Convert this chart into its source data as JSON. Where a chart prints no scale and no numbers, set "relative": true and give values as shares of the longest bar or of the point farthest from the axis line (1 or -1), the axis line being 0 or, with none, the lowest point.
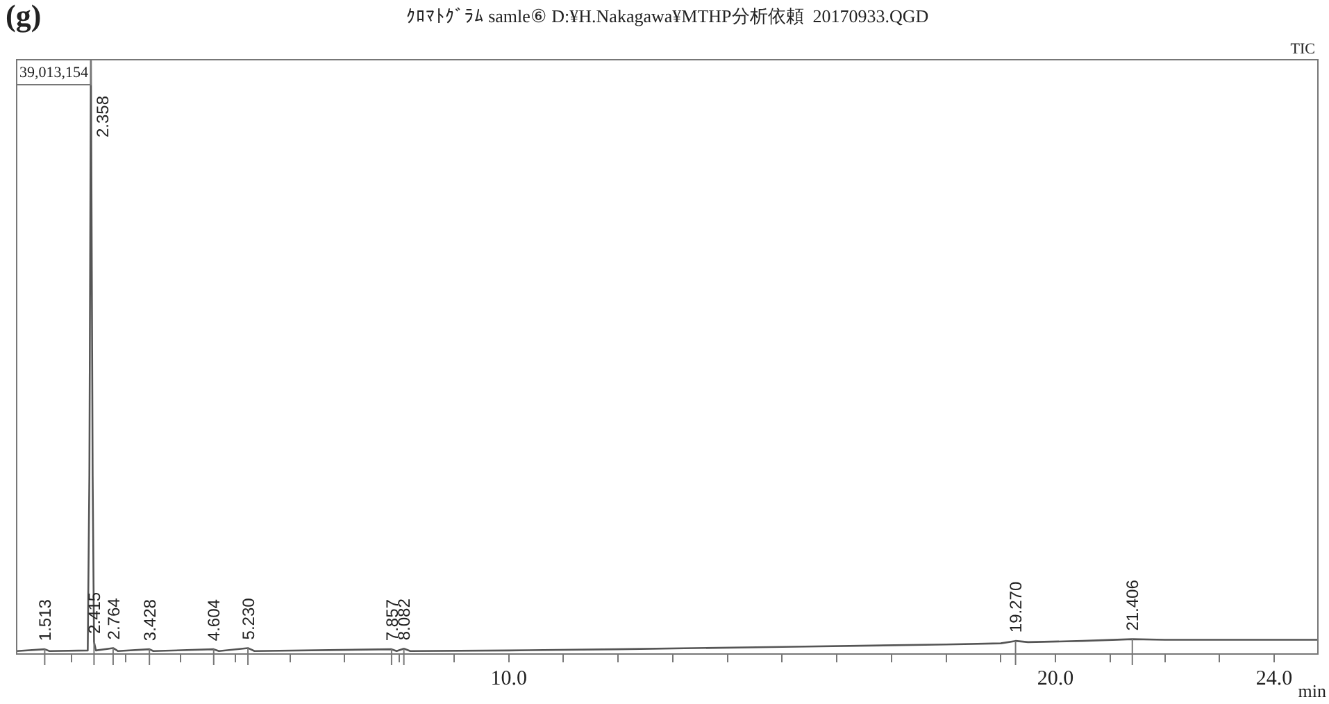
{
  "chart_data": {
    "type": "line",
    "title": "(g)",
    "subtitle": "ｸﾛﾏﾄｸﾞﾗﾑ samle⑥ D:¥H.Nakagawa¥MTHP分析依頼  20170933.QGD",
    "xlabel": "min",
    "relative": true,
    "x": [
      1.0,
      1.513,
      1.6,
      2.3,
      2.33,
      2.358,
      2.39,
      2.415,
      2.45,
      2.764,
      2.85,
      3.428,
      3.5,
      4.604,
      4.7,
      5.23,
      5.35,
      7.857,
      7.95,
      8.082,
      8.2,
      10,
      12,
      15,
      18,
      19.0,
      19.27,
      19.5,
      20.5,
      21.406,
      22,
      24.8
    ],
    "series": [
      {
        "color": "#555555",
        "values": [
          0.005,
          0.008,
          0.005,
          0.006,
          0.3,
          1.0,
          0.3,
          0.02,
          0.006,
          0.01,
          0.005,
          0.008,
          0.005,
          0.008,
          0.005,
          0.01,
          0.005,
          0.008,
          0.005,
          0.009,
          0.005,
          0.006,
          0.008,
          0.012,
          0.016,
          0.018,
          0.022,
          0.02,
          0.022,
          0.025,
          0.024,
          0.024
        ]
      }
    ],
    "xlim": [
      1.0,
      24.8
    ],
    "xticks": [
      {
        "value": 2,
        "label": null
      },
      {
        "value": 3,
        "label": null
      },
      {
        "value": 4,
        "label": null
      },
      {
        "value": 5,
        "label": null
      },
      {
        "value": 6,
        "label": null
      },
      {
        "value": 7,
        "label": null
      },
      {
        "value": 8,
        "label": null
      },
      {
        "value": 9,
        "label": null
      },
      {
        "value": 10,
        "label": "10.0"
      },
      {
        "value": 11,
        "label": null
      },
      {
        "value": 12,
        "label": null
      },
      {
        "value": 13,
        "label": null
      },
      {
        "value": 14,
        "label": null
      },
      {
        "value": 15,
        "label": null
      },
      {
        "value": 16,
        "label": null
      },
      {
        "value": 17,
        "label": null
      },
      {
        "value": 18,
        "label": null
      },
      {
        "value": 19,
        "label": null
      },
      {
        "value": 20,
        "label": "20.0"
      },
      {
        "value": 21,
        "label": null
      },
      {
        "value": 22,
        "label": null
      },
      {
        "value": 23,
        "label": null
      },
      {
        "value": 24,
        "label": "24.0"
      }
    ],
    "grid": false,
    "legend": false,
    "marker": "none",
    "line_style": "solid",
    "annotations": [
      "39,013,154",
      "TIC",
      {
        "text": "1.513",
        "x": 1.513,
        "y": 0.008
      },
      {
        "text": "2.358",
        "x": 2.358,
        "y": 1.0
      },
      {
        "text": "2.415",
        "x": 2.415,
        "y": 0.02
      },
      {
        "text": "2.764",
        "x": 2.764,
        "y": 0.01
      },
      {
        "text": "3.428",
        "x": 3.428,
        "y": 0.008
      },
      {
        "text": "4.604",
        "x": 4.604,
        "y": 0.008
      },
      {
        "text": "5.230",
        "x": 5.23,
        "y": 0.01
      },
      {
        "text": "7.857",
        "x": 7.857,
        "y": 0.008
      },
      {
        "text": "8.082",
        "x": 8.082,
        "y": 0.009
      },
      {
        "text": "19.270",
        "x": 19.27,
        "y": 0.022
      },
      {
        "text": "21.406",
        "x": 21.406,
        "y": 0.025
      }
    ]
  }
}
